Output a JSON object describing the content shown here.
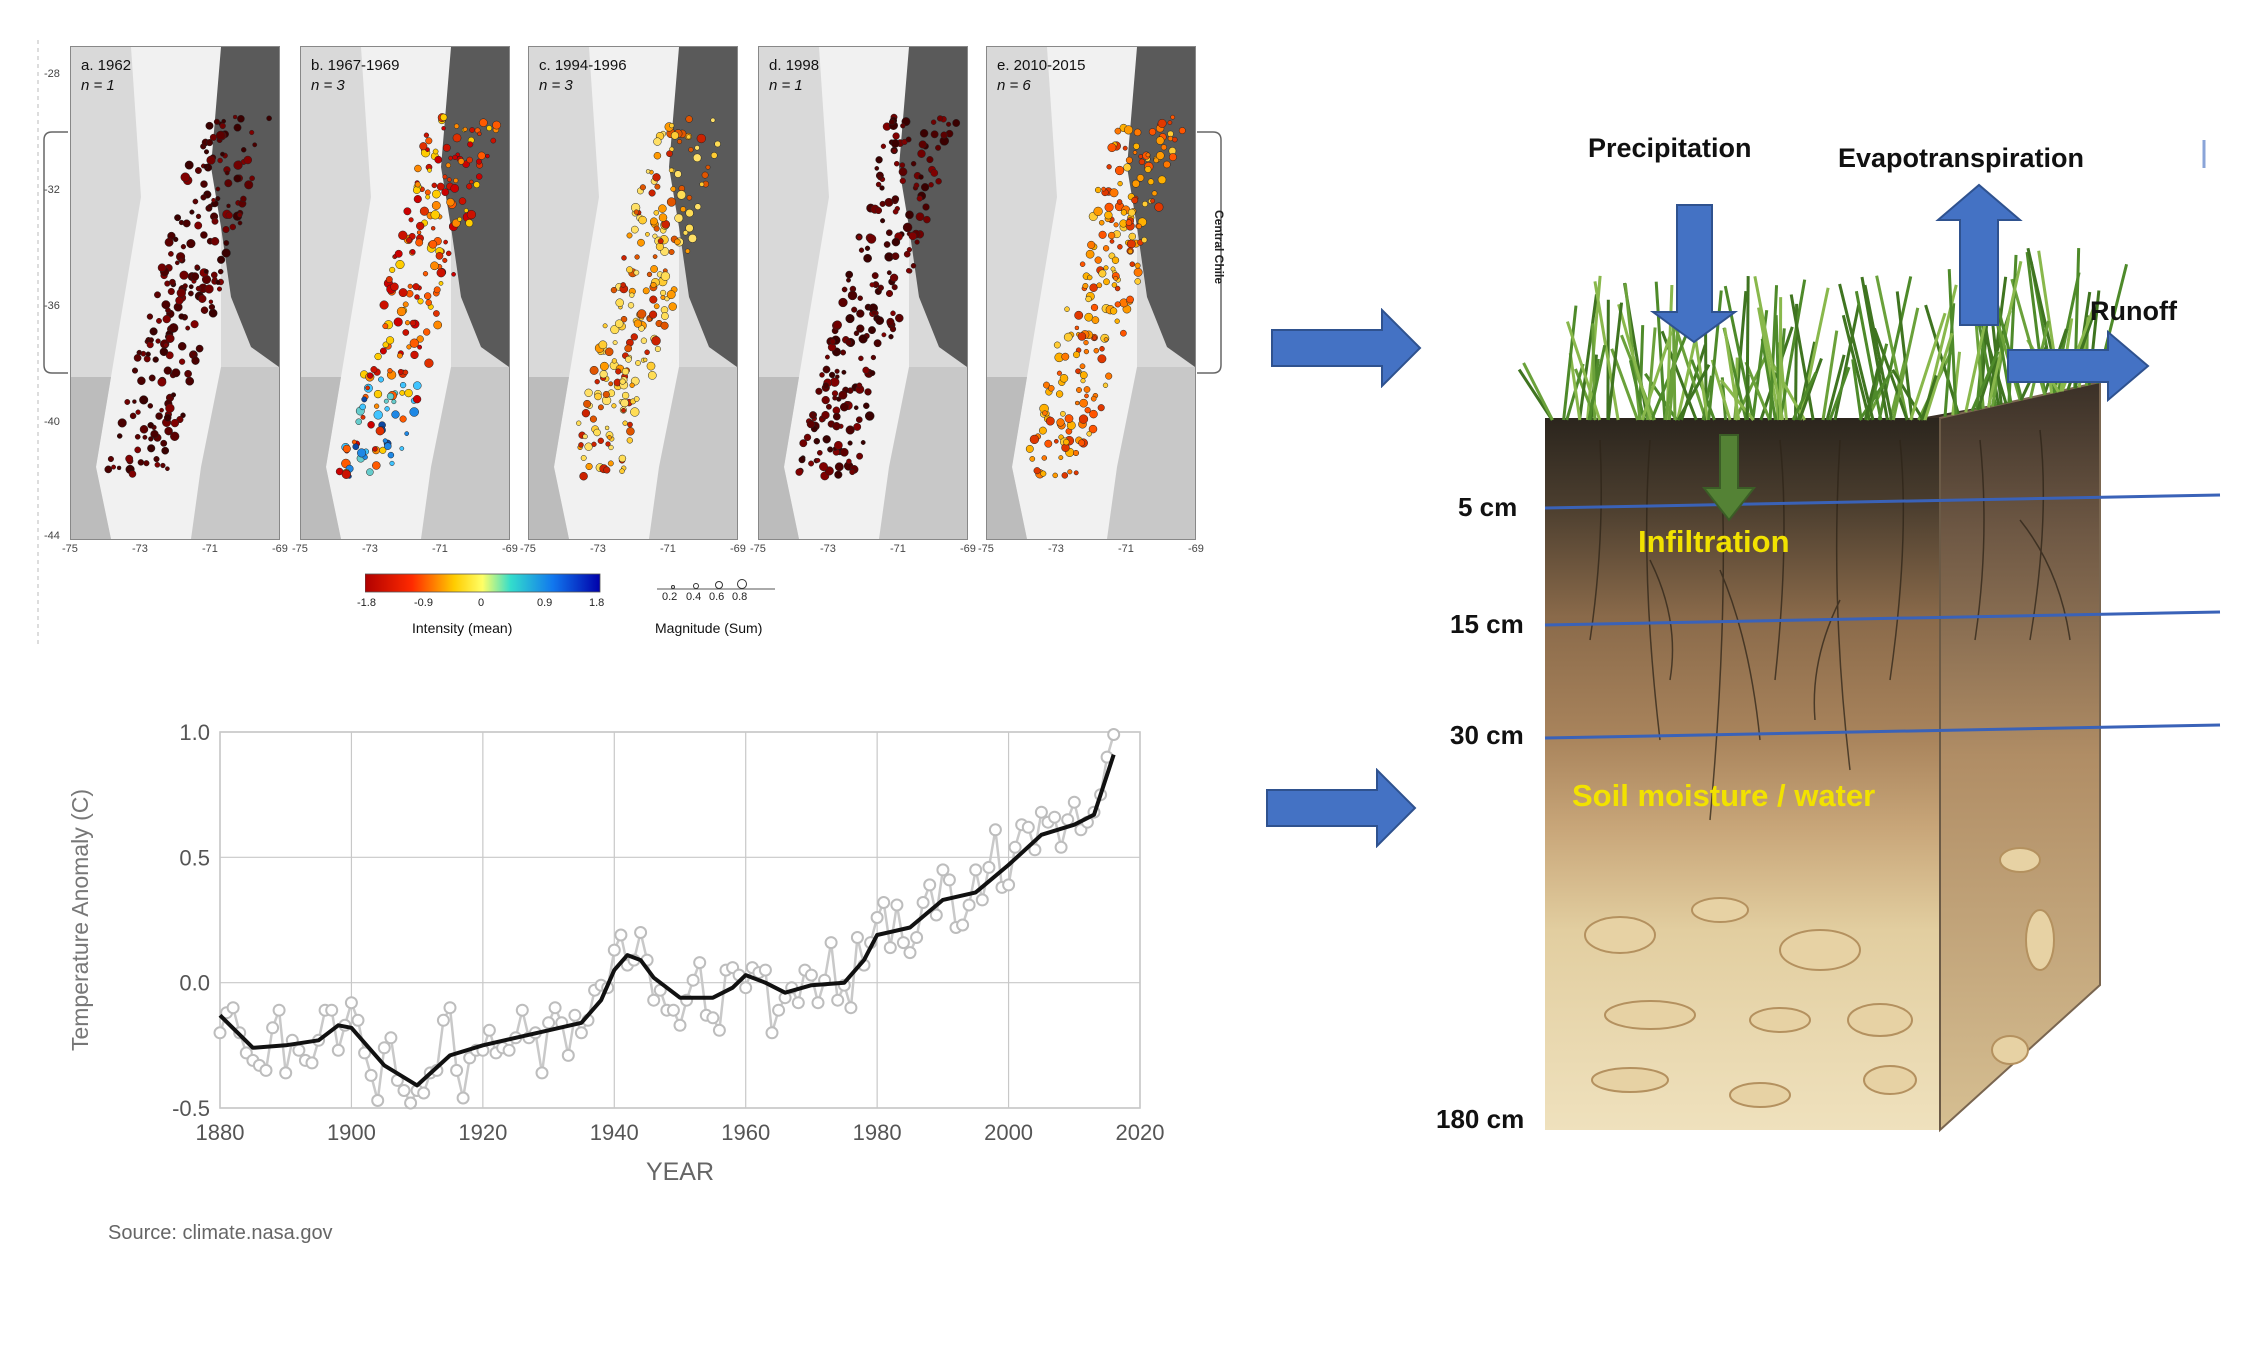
{
  "maps": {
    "panels": [
      {
        "title": "a. 1962",
        "n": "n = 1",
        "scheme": "dark"
      },
      {
        "title": "b. 1967-1969",
        "n": "n = 3",
        "scheme": "mixed"
      },
      {
        "title": "c. 1994-1996",
        "n": "n = 3",
        "scheme": "yellow"
      },
      {
        "title": "d. 1998",
        "n": "n = 1",
        "scheme": "dark"
      },
      {
        "title": "e. 2010-2015",
        "n": "n = 6",
        "scheme": "orange"
      }
    ],
    "lat_ticks": [
      "-28",
      "-32",
      "-36",
      "-40",
      "-44"
    ],
    "lon_ticks": [
      "-75",
      "-73",
      "-71",
      "-69"
    ],
    "region_label": "Central Chile",
    "colorbar": {
      "ticks": [
        "-1.8",
        "-0.9",
        "0",
        "0.9",
        "1.8"
      ],
      "label": "Intensity (mean)"
    },
    "magnitude": {
      "ticks": [
        "0.2",
        "0.4",
        "0.6",
        "0.8"
      ],
      "label": "Magnitude (Sum)"
    }
  },
  "temperature": {
    "source": "Source: climate.nasa.gov"
  },
  "chart_data": {
    "type": "line",
    "xlabel": "YEAR",
    "ylabel": "Temperature Anomaly (C)",
    "xlim": [
      1880,
      2020
    ],
    "ylim": [
      -0.5,
      1.0
    ],
    "x_ticks": [
      "1880",
      "1900",
      "1920",
      "1940",
      "1960",
      "1980",
      "2000",
      "2020"
    ],
    "y_ticks": [
      "-0.5",
      "0.0",
      "0.5",
      "1.0"
    ],
    "grid": true,
    "series": [
      {
        "kind": "annual",
        "x": [
          1880,
          1881,
          1882,
          1883,
          1884,
          1885,
          1886,
          1887,
          1888,
          1889,
          1890,
          1891,
          1892,
          1893,
          1894,
          1895,
          1896,
          1897,
          1898,
          1899,
          1900,
          1901,
          1902,
          1903,
          1904,
          1905,
          1906,
          1907,
          1908,
          1909,
          1910,
          1911,
          1912,
          1913,
          1914,
          1915,
          1916,
          1917,
          1918,
          1919,
          1920,
          1921,
          1922,
          1923,
          1924,
          1925,
          1926,
          1927,
          1928,
          1929,
          1930,
          1931,
          1932,
          1933,
          1934,
          1935,
          1936,
          1937,
          1938,
          1939,
          1940,
          1941,
          1942,
          1943,
          1944,
          1945,
          1946,
          1947,
          1948,
          1949,
          1950,
          1951,
          1952,
          1953,
          1954,
          1955,
          1956,
          1957,
          1958,
          1959,
          1960,
          1961,
          1962,
          1963,
          1964,
          1965,
          1966,
          1967,
          1968,
          1969,
          1970,
          1971,
          1972,
          1973,
          1974,
          1975,
          1976,
          1977,
          1978,
          1979,
          1980,
          1981,
          1982,
          1983,
          1984,
          1985,
          1986,
          1987,
          1988,
          1989,
          1990,
          1991,
          1992,
          1993,
          1994,
          1995,
          1996,
          1997,
          1998,
          1999,
          2000,
          2001,
          2002,
          2003,
          2004,
          2005,
          2006,
          2007,
          2008,
          2009,
          2010,
          2011,
          2012,
          2013,
          2014,
          2015,
          2016
        ],
        "y": [
          -0.2,
          -0.12,
          -0.1,
          -0.2,
          -0.28,
          -0.31,
          -0.33,
          -0.35,
          -0.18,
          -0.11,
          -0.36,
          -0.23,
          -0.27,
          -0.31,
          -0.32,
          -0.23,
          -0.11,
          -0.11,
          -0.27,
          -0.17,
          -0.08,
          -0.15,
          -0.28,
          -0.37,
          -0.47,
          -0.26,
          -0.22,
          -0.39,
          -0.43,
          -0.48,
          -0.43,
          -0.44,
          -0.36,
          -0.35,
          -0.15,
          -0.1,
          -0.35,
          -0.46,
          -0.3,
          -0.27,
          -0.27,
          -0.19,
          -0.28,
          -0.26,
          -0.27,
          -0.22,
          -0.11,
          -0.22,
          -0.2,
          -0.36,
          -0.16,
          -0.1,
          -0.16,
          -0.29,
          -0.13,
          -0.2,
          -0.15,
          -0.03,
          -0.01,
          -0.02,
          0.13,
          0.19,
          0.07,
          0.09,
          0.2,
          0.09,
          -0.07,
          -0.03,
          -0.11,
          -0.11,
          -0.17,
          -0.07,
          0.01,
          0.08,
          -0.13,
          -0.14,
          -0.19,
          0.05,
          0.06,
          0.03,
          -0.02,
          0.06,
          0.04,
          0.05,
          -0.2,
          -0.11,
          -0.06,
          -0.02,
          -0.08,
          0.05,
          0.03,
          -0.08,
          0.01,
          0.16,
          -0.07,
          -0.01,
          -0.1,
          0.18,
          0.07,
          0.16,
          0.26,
          0.32,
          0.14,
          0.31,
          0.16,
          0.12,
          0.18,
          0.32,
          0.39,
          0.27,
          0.45,
          0.41,
          0.22,
          0.23,
          0.31,
          0.45,
          0.33,
          0.46,
          0.61,
          0.38,
          0.39,
          0.54,
          0.63,
          0.62,
          0.53,
          0.68,
          0.64,
          0.66,
          0.54,
          0.65,
          0.72,
          0.61,
          0.64,
          0.68,
          0.75,
          0.9,
          0.99
        ]
      },
      {
        "kind": "smoothed",
        "x": [
          1880,
          1885,
          1890,
          1895,
          1898,
          1900,
          1905,
          1910,
          1915,
          1920,
          1925,
          1930,
          1935,
          1938,
          1940,
          1942,
          1944,
          1946,
          1950,
          1955,
          1958,
          1960,
          1963,
          1966,
          1970,
          1975,
          1978,
          1980,
          1985,
          1990,
          1995,
          2000,
          2005,
          2010,
          2013,
          2016
        ],
        "y": [
          -0.13,
          -0.26,
          -0.25,
          -0.23,
          -0.17,
          -0.18,
          -0.33,
          -0.41,
          -0.29,
          -0.25,
          -0.22,
          -0.19,
          -0.16,
          -0.07,
          0.05,
          0.11,
          0.09,
          0.02,
          -0.06,
          -0.06,
          -0.02,
          0.03,
          0.0,
          -0.04,
          -0.01,
          0.0,
          0.09,
          0.19,
          0.22,
          0.33,
          0.36,
          0.47,
          0.59,
          0.63,
          0.67,
          0.91
        ]
      }
    ]
  },
  "soil": {
    "precipitation": "Precipitation",
    "evapotranspiration": "Evapotranspiration",
    "runoff": "Runoff",
    "infiltration": "Infiltration",
    "soil_moisture": "Soil moisture / water",
    "depths": [
      "5 cm",
      "15 cm",
      "30 cm",
      "180 cm"
    ],
    "arrow_color": "#4472c4",
    "infiltration_arrow_color": "#548235"
  }
}
